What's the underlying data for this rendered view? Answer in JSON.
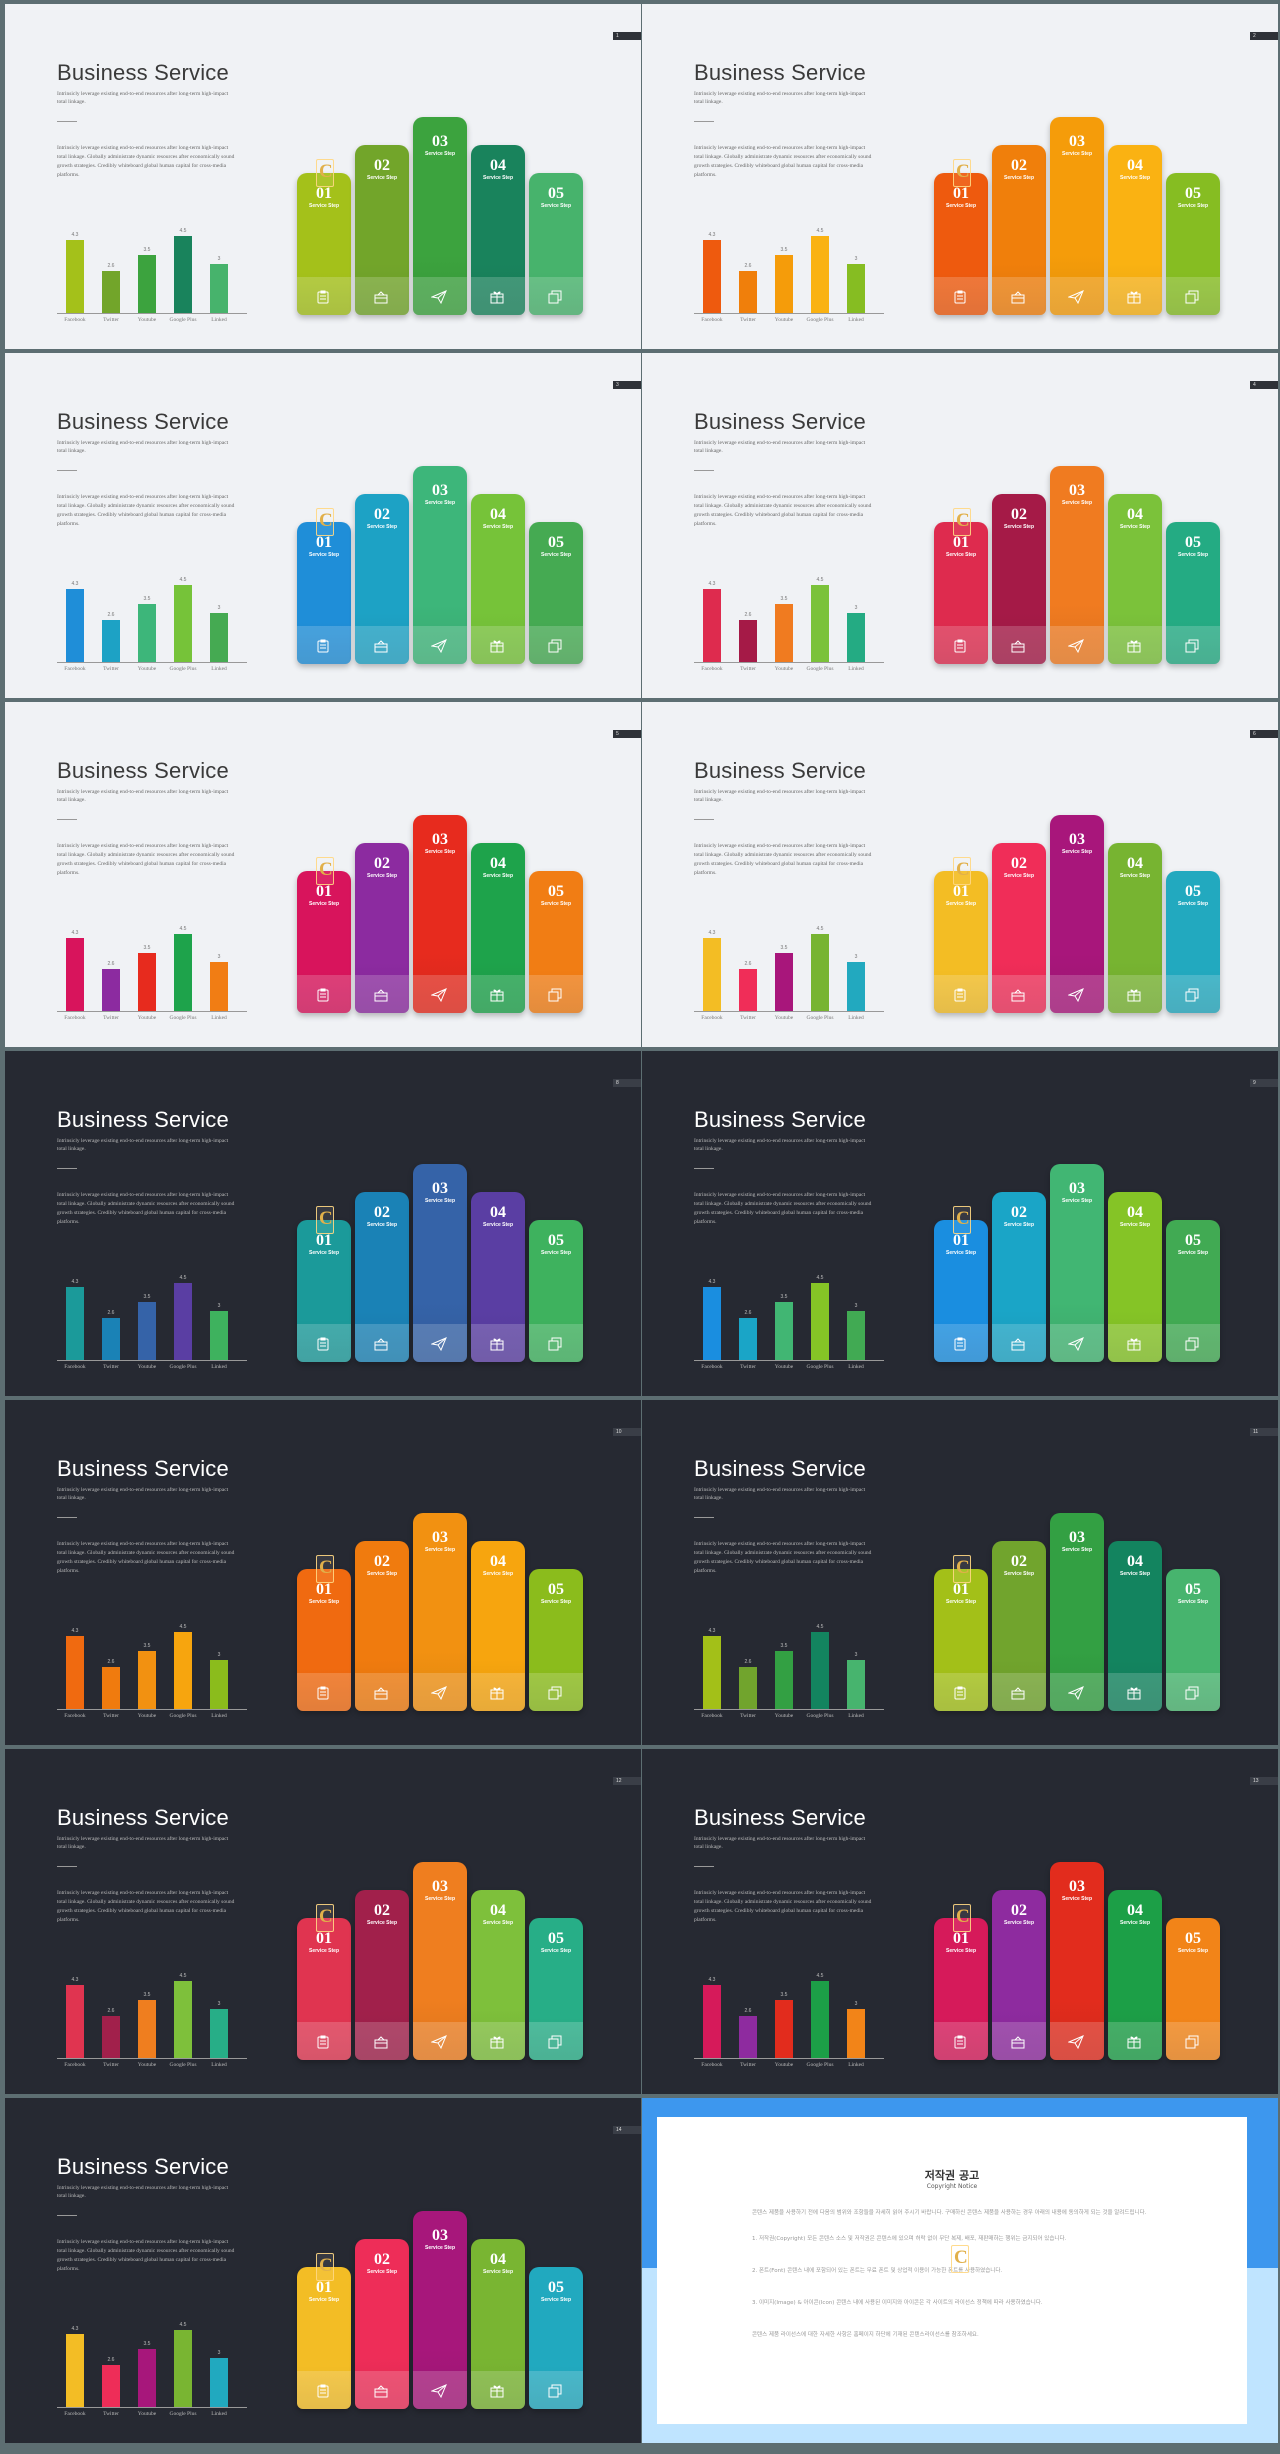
{
  "slides": [
    {
      "num": "1",
      "theme": "light",
      "colors": [
        "#a4c11a",
        "#72a52a",
        "#3ca33e",
        "#19835c",
        "#47b36c"
      ]
    },
    {
      "num": "2",
      "theme": "light",
      "colors": [
        "#ee5a0e",
        "#f07f0b",
        "#f59c0a",
        "#fab212",
        "#86bd22"
      ]
    },
    {
      "num": "3",
      "theme": "light",
      "colors": [
        "#1f8ed8",
        "#1da2c5",
        "#3db67a",
        "#76c339",
        "#45aa52"
      ]
    },
    {
      "num": "4",
      "theme": "light",
      "colors": [
        "#de2b4e",
        "#a51a47",
        "#f07b20",
        "#7bc23a",
        "#24ab83"
      ]
    },
    {
      "num": "5",
      "theme": "light",
      "colors": [
        "#d8145c",
        "#8c2ba0",
        "#e72b1e",
        "#1ea34b",
        "#f17d14"
      ]
    },
    {
      "num": "6",
      "theme": "light",
      "colors": [
        "#f3bd24",
        "#f02d58",
        "#a8167b",
        "#77b431",
        "#22a9bf"
      ]
    },
    {
      "num": "8",
      "theme": "dark",
      "colors": [
        "#1b9a9a",
        "#1a82b6",
        "#3563a8",
        "#5a3ea3",
        "#3eb25e"
      ]
    },
    {
      "num": "9",
      "theme": "dark",
      "colors": [
        "#1a8ee0",
        "#1aa5c7",
        "#41b673",
        "#85c426",
        "#41aa53"
      ]
    },
    {
      "num": "10",
      "theme": "dark",
      "colors": [
        "#f06a10",
        "#f07b0e",
        "#f29111",
        "#f7a50e",
        "#8bbc1c"
      ]
    },
    {
      "num": "11",
      "theme": "dark",
      "colors": [
        "#a3c018",
        "#71a42d",
        "#33a043",
        "#13845f",
        "#47b46e"
      ]
    },
    {
      "num": "12",
      "theme": "dark",
      "colors": [
        "#e03450",
        "#a1204b",
        "#ef7e1f",
        "#7ec03b",
        "#27ae87"
      ]
    },
    {
      "num": "13",
      "theme": "dark",
      "colors": [
        "#d61a5a",
        "#8e2b9f",
        "#e22c1d",
        "#1c9f47",
        "#f28418"
      ]
    },
    {
      "num": "14",
      "theme": "dark",
      "colors": [
        "#f3bd25",
        "#ee2d58",
        "#a7177b",
        "#79b532",
        "#21a9bf"
      ]
    }
  ],
  "common": {
    "title": "Business Service",
    "subtitle": "Intrinsicly leverage existing end-to-end resources after long-term high-impact total linkage.",
    "body": "Intrinsicly leverage existing end-to-end resources after long-term high-impact total linkage. Globally administrate dynamic resources after economically sound growth strategies. Credibly whiteboard global human capital for cross-media platforms.",
    "mini_chart": {
      "type": "bar",
      "categories": [
        "Facebook",
        "Twitter",
        "Youtube",
        "Google Plus",
        "Linked"
      ],
      "values": [
        4.3,
        2.6,
        3.5,
        4.5,
        3
      ],
      "value_labels": [
        "4.3",
        "2.6",
        "3.5",
        "4.5",
        "3"
      ]
    },
    "steps": [
      {
        "number": "01",
        "label": "Service Step",
        "icon": "clipboard-icon"
      },
      {
        "number": "02",
        "label": "Service Step",
        "icon": "gift-box-icon"
      },
      {
        "number": "03",
        "label": "Service Step",
        "icon": "paper-plane-icon"
      },
      {
        "number": "04",
        "label": "Service Step",
        "icon": "gift-icon"
      },
      {
        "number": "05",
        "label": "Service Step",
        "icon": "copy-icon"
      }
    ],
    "badge_letter": "C"
  },
  "copyright": {
    "title": "저작권 공고",
    "subtitle": "Copyright Notice",
    "paragraphs": [
      "콘텐스 제품을 사용하기 전에 다음의 범위와 조항들을 자세히 읽어 주시기 바랍니다. 구매하신 콘텐스 제품을 사용하는 경우 아래의 내용에 동의하게 되는 것을 알려드립니다.",
      "1. 저작권(Copyright) 모든 콘텐스 소스 및 저작권은 콘텐스에 있으며 허락 없이 무단 복제, 배포, 재판매하는 행위는 금지되어 있습니다.",
      "2. 폰트(Font) 콘텐스 내에 포함되어 있는 폰트는 무료 폰트 및 상업적 이용이 가능한 폰트를 사용하였습니다.",
      "3. 이미지(Image) & 아이콘(Icon) 콘텐스 내에 사용된 이미지와 아이콘은 각 사이트의 라이선스 정책에 따라 사용하였습니다.",
      "콘텐스 제품 라이선스에 대한 자세한 사항은 홈페이지 하단에 기재된 콘텐스라이선스를 참조하세요."
    ]
  }
}
